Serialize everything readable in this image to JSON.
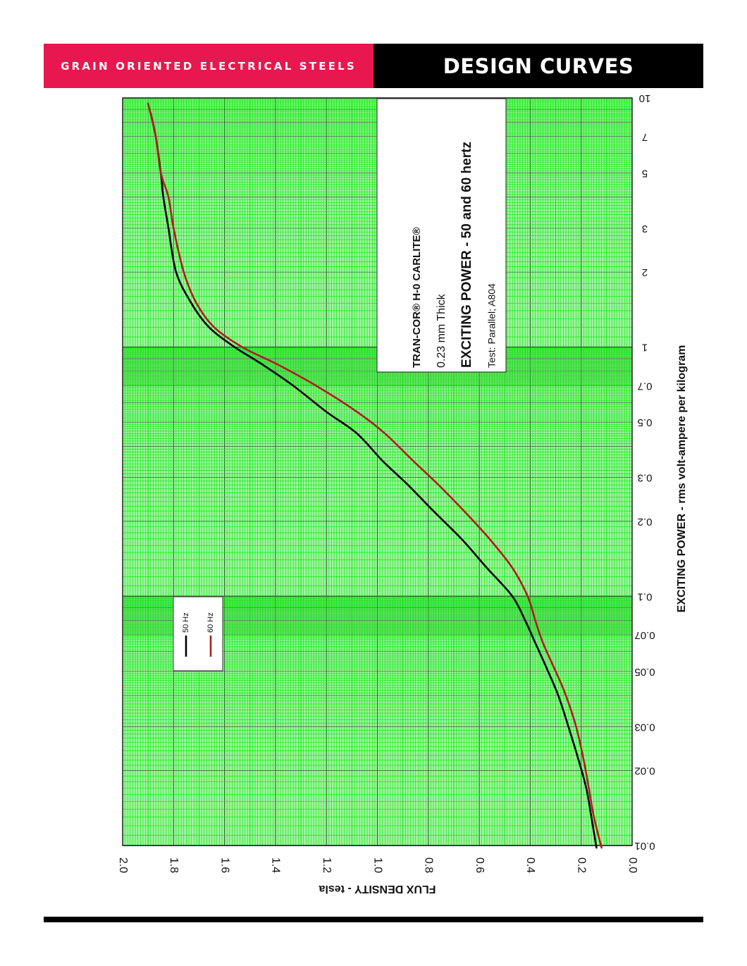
{
  "header": {
    "left_title": "GRAIN ORIENTED ELECTRICAL STEELS",
    "right_title": "DESIGN CURVES",
    "left_color": "#e8174f",
    "right_color": "#000000"
  },
  "chart_data": {
    "type": "line",
    "orientation": "rotated 90° counterclockwise",
    "xlabel": "EXCITING POWER - rms volt-ampere per kilogram",
    "ylabel": "FLUX DENSITY - tesla",
    "x_scale": "log",
    "x_range": [
      0.01,
      10
    ],
    "x_ticks": [
      "0.01",
      "0.02",
      "0.03",
      "0.05",
      "0.07",
      "0.1",
      "0.2",
      "0.3",
      "0.5",
      "0.7",
      "1",
      "2",
      "3",
      "5",
      "7",
      "10"
    ],
    "y_range": [
      0.0,
      2.0
    ],
    "y_ticks": [
      "0.0",
      "0.2",
      "0.4",
      "0.6",
      "0.8",
      "1.0",
      "1.2",
      "1.4",
      "1.6",
      "1.8",
      "2.0"
    ],
    "grid": true,
    "grid_color": "#00e600",
    "grid_major_color": "#2b5f2b",
    "background_color": "#9ef59e",
    "info_box": {
      "line1": "TRAN-COR® H-0 CARLITE®",
      "line2": "0.23 mm Thick",
      "line3": "EXCITING POWER - 50 and 60 hertz",
      "line4": "Test: Parallel; A804"
    },
    "legend_position": "lower-left",
    "series": [
      {
        "name": "50 Hz",
        "color": "#000000",
        "x": [
          0.0098,
          0.013,
          0.017,
          0.022,
          0.03,
          0.04,
          0.05,
          0.065,
          0.08,
          0.1,
          0.13,
          0.17,
          0.22,
          0.28,
          0.35,
          0.45,
          0.55,
          0.7,
          0.85,
          1.0,
          1.2,
          1.5,
          2.0,
          3.0,
          4.0,
          5.0,
          7.0,
          8.7
        ],
        "y": [
          0.14,
          0.16,
          0.18,
          0.21,
          0.25,
          0.29,
          0.33,
          0.38,
          0.42,
          0.47,
          0.57,
          0.67,
          0.78,
          0.88,
          0.98,
          1.08,
          1.2,
          1.33,
          1.45,
          1.56,
          1.66,
          1.73,
          1.79,
          1.82,
          1.84,
          1.85,
          1.87,
          1.89
        ]
      },
      {
        "name": "60 Hz",
        "color": "#b01c1c",
        "x": [
          0.0098,
          0.013,
          0.017,
          0.022,
          0.03,
          0.04,
          0.05,
          0.065,
          0.08,
          0.1,
          0.13,
          0.17,
          0.22,
          0.28,
          0.35,
          0.45,
          0.55,
          0.7,
          0.85,
          1.0,
          1.2,
          1.5,
          2.0,
          3.0,
          4.0,
          5.0,
          7.0,
          9.5
        ],
        "y": [
          0.12,
          0.15,
          0.17,
          0.19,
          0.22,
          0.26,
          0.3,
          0.35,
          0.38,
          0.41,
          0.47,
          0.56,
          0.66,
          0.76,
          0.86,
          0.97,
          1.08,
          1.24,
          1.39,
          1.53,
          1.64,
          1.71,
          1.76,
          1.8,
          1.82,
          1.85,
          1.87,
          1.9
        ]
      }
    ]
  }
}
